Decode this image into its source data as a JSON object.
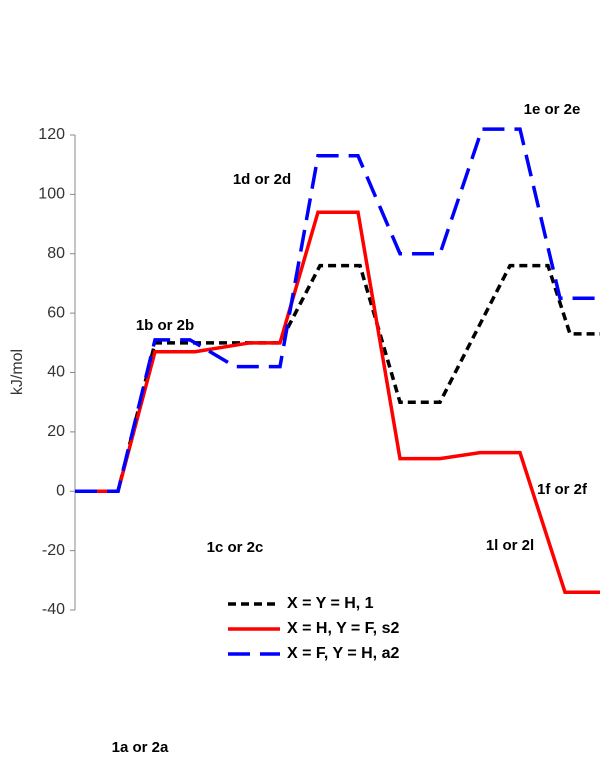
{
  "chart_data": {
    "type": "line",
    "y_label": "kJ/mol",
    "ylim": [
      -40,
      120
    ],
    "yticks": [
      -40,
      -20,
      0,
      20,
      40,
      60,
      80,
      100,
      120
    ],
    "xlim": [
      0,
      53
    ],
    "legend": "bottom",
    "annotations": [
      "1a or 2a",
      "1b or 2b",
      "1c or 2c",
      "1d or 2d",
      "1e or 2e",
      "1f or 2f",
      "1l or 2l"
    ],
    "series": [
      {
        "name": "X = Y = H, 1",
        "color": "#000000",
        "dash": "dashed",
        "x": [
          0,
          4.3,
          8,
          17.5,
          20.5,
          24.5,
          28.5,
          32.5,
          36.5,
          43.5,
          47.3,
          49.5,
          52.5
        ],
        "values": [
          0,
          0,
          50,
          50,
          50,
          76,
          76,
          30,
          30,
          76,
          76,
          53,
          53
        ]
      },
      {
        "name": "X = H, Y = F, s2",
        "color": "#ff0000",
        "dash": "solid",
        "x": [
          0,
          4.3,
          8,
          12,
          17.5,
          20.5,
          24.3,
          28.3,
          32.5,
          36.5,
          40.5,
          44.5,
          49,
          52.5
        ],
        "values": [
          0,
          0,
          47,
          47,
          50,
          50,
          94,
          94,
          11,
          11,
          13,
          13,
          -34,
          -34
        ]
      },
      {
        "name": "X = F, Y = H, a2",
        "color": "#0000ff",
        "dash": "longdash",
        "x": [
          0,
          4.3,
          8,
          11.5,
          16,
          20.5,
          24.3,
          28.3,
          32.5,
          36.5,
          40.7,
          44.5,
          48.5,
          52.5
        ],
        "values": [
          0,
          0,
          51,
          51,
          42,
          42,
          113,
          113,
          80,
          80,
          122,
          122,
          65,
          65
        ]
      }
    ]
  }
}
